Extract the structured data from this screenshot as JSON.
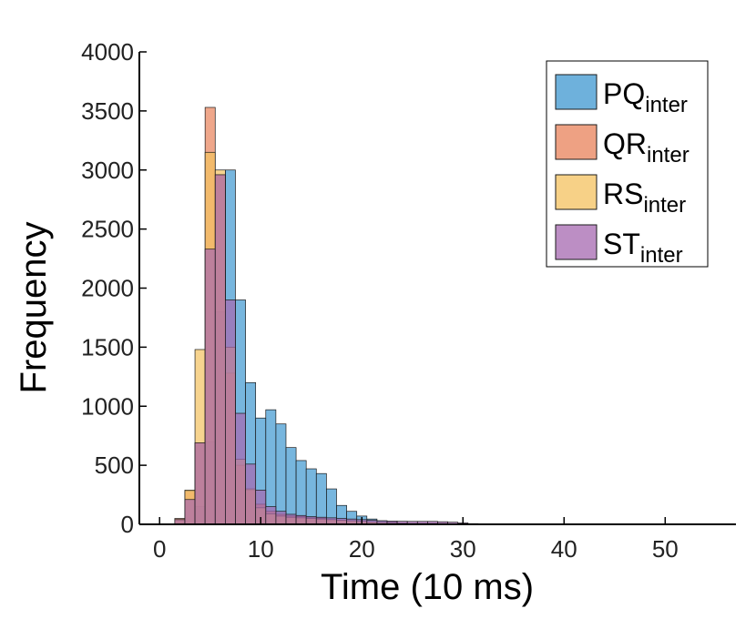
{
  "chart_data": {
    "type": "histogram",
    "title": "",
    "xlabel": "Time (10 ms)",
    "ylabel": "Frequency",
    "xlim": [
      -2,
      57
    ],
    "ylim": [
      0,
      4000
    ],
    "xticks": [
      "0",
      "10",
      "20",
      "30",
      "40",
      "50"
    ],
    "yticks": [
      "0",
      "500",
      "1000",
      "1500",
      "2000",
      "2500",
      "3000",
      "3500",
      "4000"
    ],
    "bin_start": 1.5,
    "bin_width": 1,
    "legend_position": "top-right",
    "grid": false,
    "series": [
      {
        "name": "PQ",
        "name_sub": "inter",
        "color": "#3d97d0",
        "values": [
          0,
          0,
          150,
          700,
          1800,
          3000,
          1900,
          1200,
          900,
          970,
          850,
          650,
          540,
          470,
          430,
          300,
          160,
          110,
          70,
          45,
          30,
          20,
          12,
          8,
          6,
          5,
          4,
          3,
          2,
          1,
          1,
          1,
          0,
          0,
          0,
          0,
          0,
          0,
          0,
          0,
          0,
          0,
          0,
          0,
          0,
          0,
          0,
          0,
          0,
          0,
          0,
          0,
          0,
          0
        ]
      },
      {
        "name": "QR",
        "name_sub": "inter",
        "color": "#e8825a",
        "values": [
          50,
          280,
          690,
          3530,
          2960,
          1280,
          500,
          290,
          170,
          110,
          85,
          70,
          65,
          55,
          50,
          40,
          35,
          30,
          25,
          20,
          15,
          12,
          10,
          10,
          10,
          10,
          8,
          6,
          4,
          2,
          1,
          1,
          0,
          0,
          0,
          0,
          0,
          0,
          0,
          0,
          0,
          0,
          0,
          0,
          0,
          0,
          0,
          0,
          0,
          0,
          0,
          0,
          0,
          0
        ]
      },
      {
        "name": "RS",
        "name_sub": "inter",
        "color": "#f4c25f",
        "values": [
          40,
          290,
          1480,
          3150,
          3000,
          1500,
          550,
          300,
          140,
          90,
          70,
          60,
          55,
          50,
          45,
          40,
          35,
          30,
          25,
          20,
          15,
          12,
          10,
          8,
          8,
          8,
          6,
          5,
          3,
          2,
          1,
          1,
          0,
          0,
          0,
          0,
          0,
          0,
          0,
          0,
          0,
          0,
          0,
          0,
          0,
          0,
          0,
          0,
          0,
          0,
          0,
          0,
          0,
          0
        ]
      },
      {
        "name": "ST",
        "name_sub": "inter",
        "color": "#a668b0",
        "values": [
          40,
          210,
          690,
          2330,
          2960,
          1900,
          940,
          510,
          290,
          150,
          110,
          85,
          75,
          65,
          60,
          55,
          50,
          45,
          40,
          35,
          30,
          28,
          26,
          25,
          25,
          25,
          22,
          18,
          12,
          6,
          3,
          1,
          0,
          0,
          0,
          0,
          0,
          0,
          0,
          0,
          0,
          0,
          0,
          0,
          0,
          0,
          0,
          0,
          0,
          0,
          0,
          0,
          0,
          0
        ]
      }
    ]
  }
}
